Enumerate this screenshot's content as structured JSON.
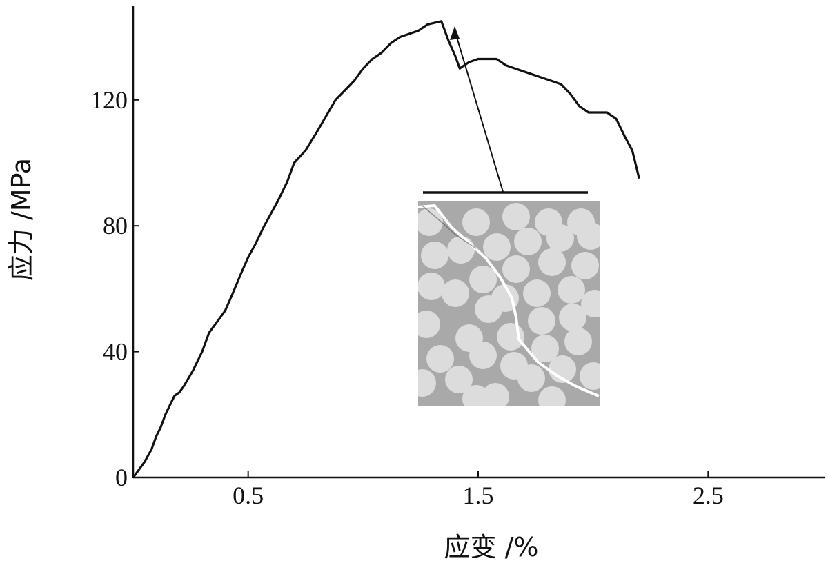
{
  "chart_data": {
    "type": "line",
    "title": "",
    "xlabel": "应变 /%",
    "ylabel": "应力 /MPa",
    "xlim": [
      0,
      3.0
    ],
    "ylim": [
      0,
      150
    ],
    "x_ticks": [
      {
        "value": 0.5,
        "label": "0.5"
      },
      {
        "value": 1.5,
        "label": "1.5"
      },
      {
        "value": 2.5,
        "label": "2.5"
      }
    ],
    "y_ticks": [
      {
        "value": 0,
        "label": "0"
      },
      {
        "value": 40,
        "label": "40"
      },
      {
        "value": 80,
        "label": "80"
      },
      {
        "value": 120,
        "label": "120"
      }
    ],
    "series": [
      {
        "x": [
          0.0,
          0.02,
          0.05,
          0.08,
          0.1,
          0.12,
          0.14,
          0.16,
          0.18,
          0.2,
          0.22,
          0.26,
          0.3,
          0.33,
          0.36,
          0.4,
          0.43,
          0.47,
          0.5,
          0.53,
          0.57,
          0.6,
          0.63,
          0.67,
          0.7,
          0.75,
          0.8,
          0.84,
          0.88,
          0.92,
          0.96,
          1.0,
          1.04,
          1.08,
          1.12,
          1.16,
          1.2,
          1.24,
          1.28,
          1.31,
          1.34,
          1.37,
          1.4,
          1.42,
          1.46,
          1.5,
          1.54,
          1.58,
          1.62,
          1.66,
          1.7,
          1.74,
          1.78,
          1.82,
          1.86,
          1.9,
          1.94,
          1.98,
          2.02,
          2.06,
          2.1,
          2.14,
          2.17,
          2.19,
          2.2
        ],
        "y": [
          0,
          2,
          5,
          9,
          13,
          16,
          20,
          23,
          26,
          27,
          29,
          34,
          40,
          46,
          49,
          53,
          58,
          65,
          70,
          74,
          80,
          84,
          88,
          94,
          100,
          104,
          110,
          115,
          120,
          123,
          126,
          130,
          133,
          135,
          138,
          140,
          141,
          142,
          144,
          144.5,
          145,
          139,
          134,
          130,
          132,
          133,
          133,
          133,
          131,
          130,
          129,
          128,
          127,
          126,
          125,
          122,
          118,
          116,
          116,
          116,
          114,
          108,
          104,
          98,
          95
        ]
      }
    ],
    "inset": {
      "type": "micrograph",
      "description_hidden": true
    },
    "grid": false,
    "legend": "none"
  }
}
